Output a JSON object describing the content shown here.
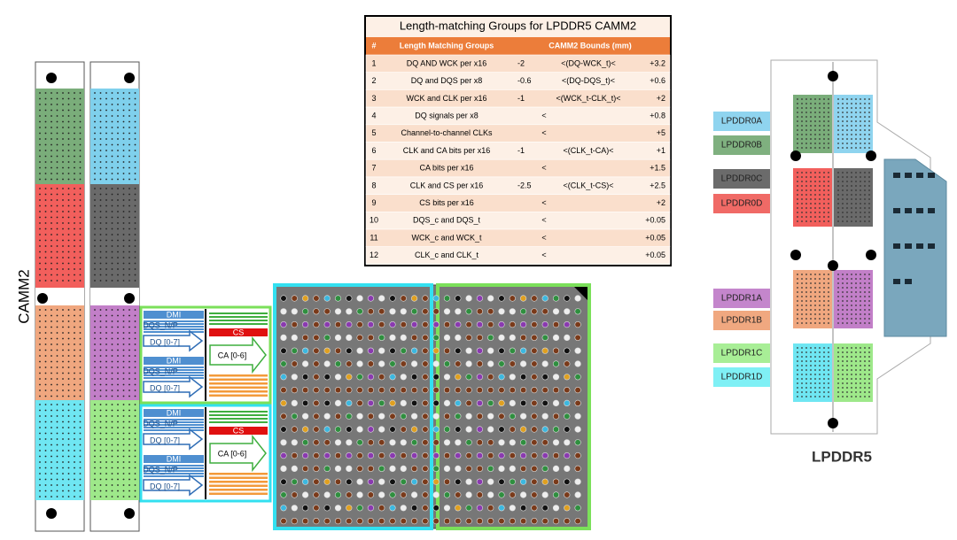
{
  "camm_label": "CAMM2",
  "signal_groups": [
    {
      "lanes": [
        {
          "dmi": "DMI",
          "dqs": "DQS_N/P",
          "dq": "DQ [0-7]"
        },
        {
          "dmi": "DMI",
          "dqs": "DQS_N/P",
          "dq": "DQ [0-7]"
        }
      ],
      "cs": "CS",
      "ca": "CA [0-6]"
    },
    {
      "lanes": [
        {
          "dmi": "DMI",
          "dqs": "DQS_N/P",
          "dq": "DQ [0-7]"
        },
        {
          "dmi": "DMI",
          "dqs": "DQS_N/P",
          "dq": "DQ [0-7]"
        }
      ],
      "cs": "CS",
      "ca": "CA [0-6]"
    }
  ],
  "table": {
    "title": "Length-matching Groups for LPDDR5 CAMM2",
    "headers": [
      "#",
      "Length Matching Groups",
      "CAMM2 Bounds (mm)"
    ],
    "rows": [
      {
        "num": "1",
        "group": "DQ AND WCK per x16",
        "low": "-2",
        "expr": "<(DQ-WCK_t)<",
        "high": "+3.2"
      },
      {
        "num": "2",
        "group": "DQ and DQS per x8",
        "low": "-0.6",
        "expr": "<(DQ-DQS_t)<",
        "high": "+0.6"
      },
      {
        "num": "3",
        "group": "WCK and CLK per x16",
        "low": "-1",
        "expr": "<(WCK_t-CLK_t)<",
        "high": "+2"
      },
      {
        "num": "4",
        "group": "DQ signals per x8",
        "expr": "<",
        "high": "+0.8"
      },
      {
        "num": "5",
        "group": "Channel-to-channel CLKs",
        "expr": "<",
        "high": "+5"
      },
      {
        "num": "6",
        "group": "CLK and CA bits per x16",
        "low": "-1",
        "expr": "<(CLK_t-CA)<",
        "high": "+1"
      },
      {
        "num": "7",
        "group": "CA bits per x16",
        "expr": "<",
        "high": "+1.5"
      },
      {
        "num": "8",
        "group": "CLK and CS per x16",
        "low": "-2.5",
        "expr": "<(CLK_t-CS)<",
        "high": "+2.5"
      },
      {
        "num": "9",
        "group": "CS bits per x16",
        "expr": "<",
        "high": "+2"
      },
      {
        "num": "10",
        "group": "DQS_c and DQS_t",
        "expr": "<",
        "high": "+0.05"
      },
      {
        "num": "11",
        "group": "WCK_c and WCK_t",
        "expr": "<",
        "high": "+0.05"
      },
      {
        "num": "12",
        "group": "CLK_c and CLK_t",
        "expr": "<",
        "high": "+0.05"
      }
    ]
  },
  "lpddr_labels": [
    {
      "text": "LPDDR0A",
      "color": "#8fd4ef"
    },
    {
      "text": "LPDDR0B",
      "color": "#7fb07f"
    },
    {
      "text": "LPDDR0C",
      "color": "#6b6b6b"
    },
    {
      "text": "LPDDR0D",
      "color": "#f06a66"
    },
    {
      "text": "LPDDR1A",
      "color": "#c486cc"
    },
    {
      "text": "LPDDR1B",
      "color": "#f0a880"
    },
    {
      "text": "LPDDR1C",
      "color": "#a8ee96"
    },
    {
      "text": "LPDDR1D",
      "color": "#7ff0f5"
    }
  ],
  "lpddr_title": "LPDDR5"
}
